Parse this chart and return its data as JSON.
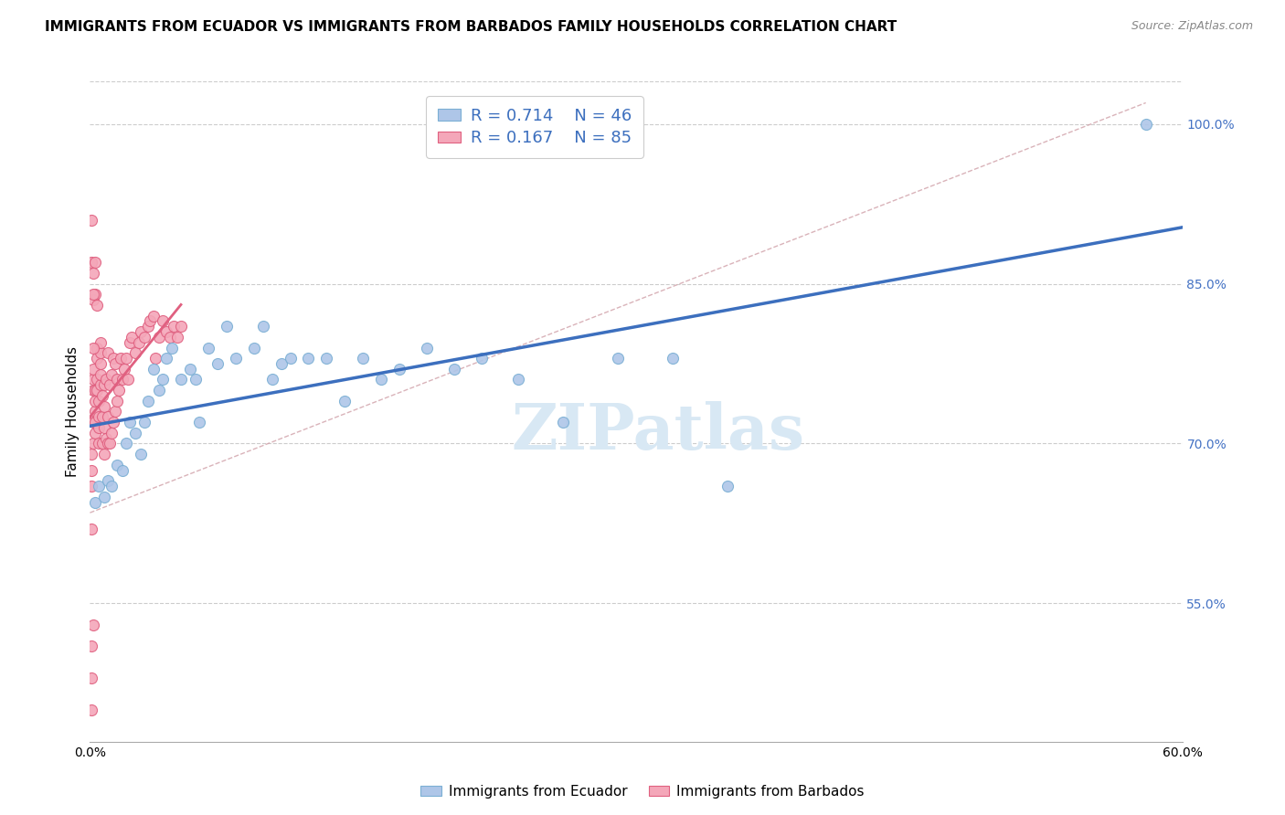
{
  "title": "IMMIGRANTS FROM ECUADOR VS IMMIGRANTS FROM BARBADOS FAMILY HOUSEHOLDS CORRELATION CHART",
  "source": "Source: ZipAtlas.com",
  "ylabel": "Family Households",
  "right_ylabel_color": "#4472c4",
  "xlim": [
    0.0,
    0.6
  ],
  "ylim": [
    0.42,
    1.04
  ],
  "xticks": [
    0.0,
    0.1,
    0.2,
    0.3,
    0.4,
    0.5,
    0.6
  ],
  "xticklabels": [
    "0.0%",
    "",
    "",
    "",
    "",
    "",
    "60.0%"
  ],
  "right_yticks": [
    0.55,
    0.7,
    0.85,
    1.0
  ],
  "right_yticklabels": [
    "55.0%",
    "70.0%",
    "85.0%",
    "100.0%"
  ],
  "legend_r1": "R = 0.714",
  "legend_n1": "N = 46",
  "legend_r2": "R = 0.167",
  "legend_n2": "N = 85",
  "ecuador_color": "#aec6e8",
  "ecuador_edge": "#7bafd4",
  "barbados_color": "#f4a7b9",
  "barbados_edge": "#e06080",
  "ecuador_line_color": "#3c6fbe",
  "barbados_line_color": "#e06080",
  "ref_line_color": "#d0a0a8",
  "watermark_color": "#d8e8f4",
  "background_color": "#ffffff",
  "ecuador_scatter_x": [
    0.003,
    0.005,
    0.008,
    0.01,
    0.012,
    0.015,
    0.018,
    0.02,
    0.022,
    0.025,
    0.028,
    0.03,
    0.032,
    0.035,
    0.038,
    0.04,
    0.042,
    0.045,
    0.05,
    0.055,
    0.058,
    0.06,
    0.065,
    0.07,
    0.075,
    0.08,
    0.09,
    0.095,
    0.1,
    0.105,
    0.11,
    0.12,
    0.13,
    0.14,
    0.15,
    0.16,
    0.17,
    0.185,
    0.2,
    0.215,
    0.235,
    0.26,
    0.29,
    0.32,
    0.35,
    0.58
  ],
  "ecuador_scatter_y": [
    0.645,
    0.66,
    0.65,
    0.665,
    0.66,
    0.68,
    0.675,
    0.7,
    0.72,
    0.71,
    0.69,
    0.72,
    0.74,
    0.77,
    0.75,
    0.76,
    0.78,
    0.79,
    0.76,
    0.77,
    0.76,
    0.72,
    0.79,
    0.775,
    0.81,
    0.78,
    0.79,
    0.81,
    0.76,
    0.775,
    0.78,
    0.78,
    0.78,
    0.74,
    0.78,
    0.76,
    0.77,
    0.79,
    0.77,
    0.78,
    0.76,
    0.72,
    0.78,
    0.78,
    0.66,
    1.0
  ],
  "barbados_scatter_x": [
    0.001,
    0.001,
    0.001,
    0.002,
    0.002,
    0.002,
    0.002,
    0.002,
    0.003,
    0.003,
    0.003,
    0.003,
    0.003,
    0.004,
    0.004,
    0.004,
    0.004,
    0.005,
    0.005,
    0.005,
    0.005,
    0.006,
    0.006,
    0.006,
    0.006,
    0.006,
    0.007,
    0.007,
    0.007,
    0.008,
    0.008,
    0.008,
    0.008,
    0.009,
    0.009,
    0.01,
    0.01,
    0.01,
    0.011,
    0.011,
    0.012,
    0.012,
    0.013,
    0.013,
    0.014,
    0.014,
    0.015,
    0.015,
    0.016,
    0.017,
    0.018,
    0.019,
    0.02,
    0.021,
    0.022,
    0.023,
    0.025,
    0.027,
    0.028,
    0.03,
    0.032,
    0.033,
    0.035,
    0.036,
    0.038,
    0.04,
    0.042,
    0.044,
    0.046,
    0.048,
    0.05,
    0.001,
    0.002,
    0.003,
    0.002,
    0.003,
    0.004,
    0.002,
    0.001,
    0.002,
    0.001,
    0.002,
    0.001,
    0.001,
    0.001
  ],
  "barbados_scatter_y": [
    0.66,
    0.675,
    0.69,
    0.7,
    0.72,
    0.75,
    0.76,
    0.77,
    0.71,
    0.72,
    0.73,
    0.74,
    0.75,
    0.75,
    0.76,
    0.78,
    0.79,
    0.7,
    0.715,
    0.725,
    0.74,
    0.755,
    0.765,
    0.775,
    0.785,
    0.795,
    0.7,
    0.725,
    0.745,
    0.69,
    0.715,
    0.735,
    0.755,
    0.705,
    0.76,
    0.7,
    0.725,
    0.785,
    0.7,
    0.755,
    0.71,
    0.765,
    0.72,
    0.78,
    0.73,
    0.775,
    0.74,
    0.76,
    0.75,
    0.78,
    0.76,
    0.77,
    0.78,
    0.76,
    0.795,
    0.8,
    0.785,
    0.795,
    0.805,
    0.8,
    0.81,
    0.815,
    0.82,
    0.78,
    0.8,
    0.815,
    0.805,
    0.8,
    0.81,
    0.8,
    0.81,
    0.87,
    0.86,
    0.87,
    0.835,
    0.84,
    0.83,
    0.79,
    0.91,
    0.84,
    0.62,
    0.53,
    0.51,
    0.48,
    0.45
  ],
  "title_fontsize": 11,
  "axis_label_fontsize": 11,
  "tick_fontsize": 10,
  "marker_size": 75
}
